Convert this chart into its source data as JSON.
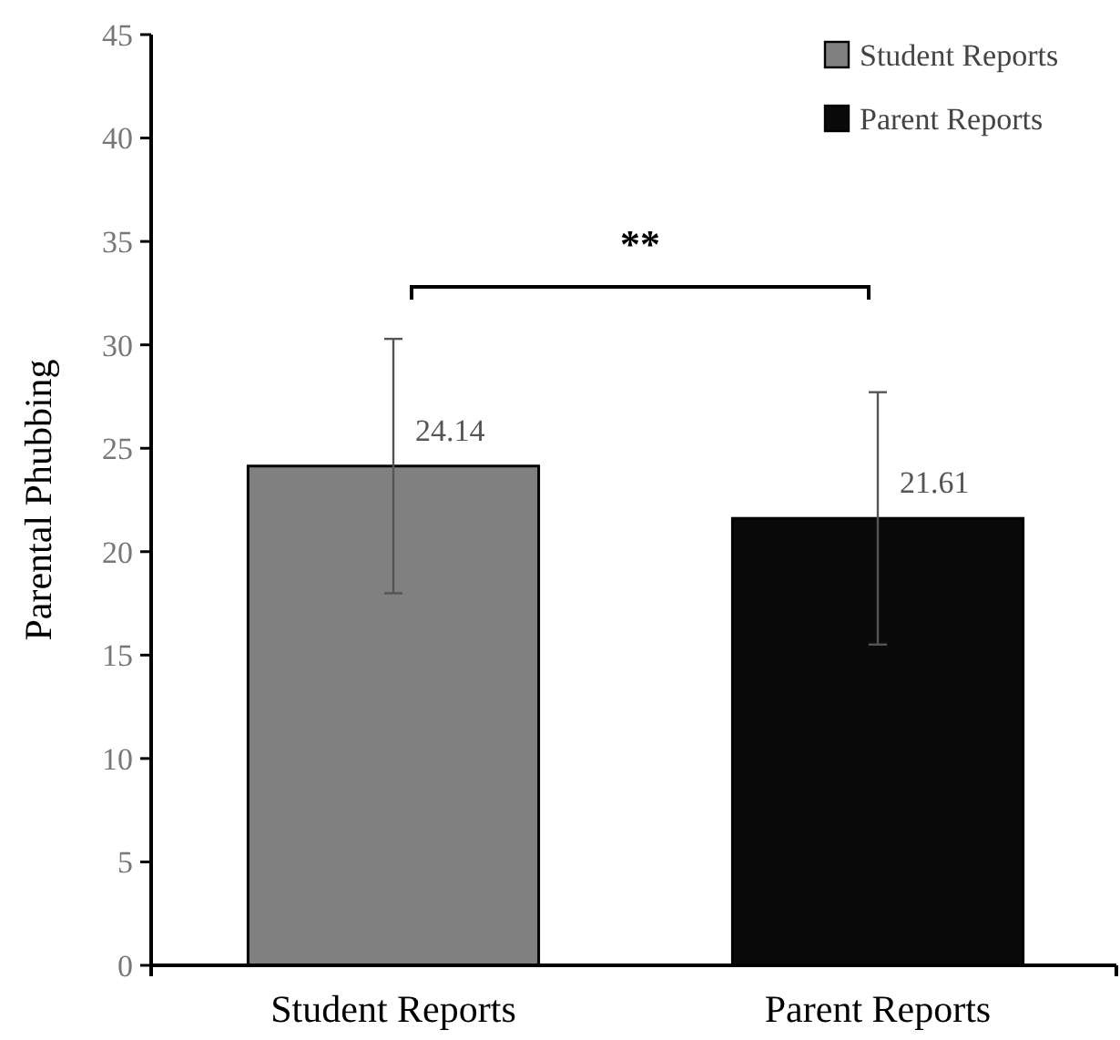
{
  "chart_data": {
    "type": "bar",
    "ylabel": "Parental Phubbing",
    "categories": [
      "Student Reports",
      "Parent Reports"
    ],
    "series": [
      {
        "name": "Student Reports",
        "color": "#808080",
        "values": [
          24.14,
          null
        ],
        "errors": [
          6.15,
          null
        ]
      },
      {
        "name": "Parent Reports",
        "color": "#0a0a0a",
        "values": [
          null,
          21.61
        ],
        "errors": [
          null,
          6.1
        ]
      }
    ],
    "ylim": [
      0,
      45
    ],
    "yticks": [
      0,
      5,
      10,
      15,
      20,
      25,
      30,
      35,
      40,
      45
    ],
    "data_labels": true,
    "legend": "top right",
    "grid": false,
    "annotations": [
      "**"
    ]
  }
}
